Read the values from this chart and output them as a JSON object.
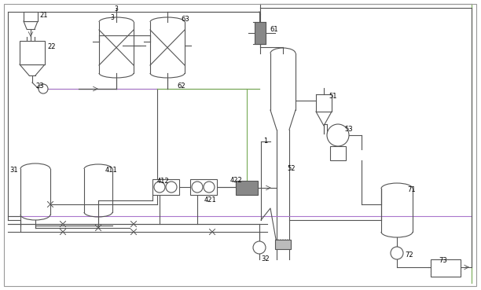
{
  "figsize": [
    6.12,
    3.69
  ],
  "dpi": 100,
  "lc": "#999999",
  "dc": "#555555",
  "pc": "#aa77cc",
  "gc": "#77aa55",
  "dark_fill": "#888888",
  "hatch_fill": "#bbbbbb"
}
